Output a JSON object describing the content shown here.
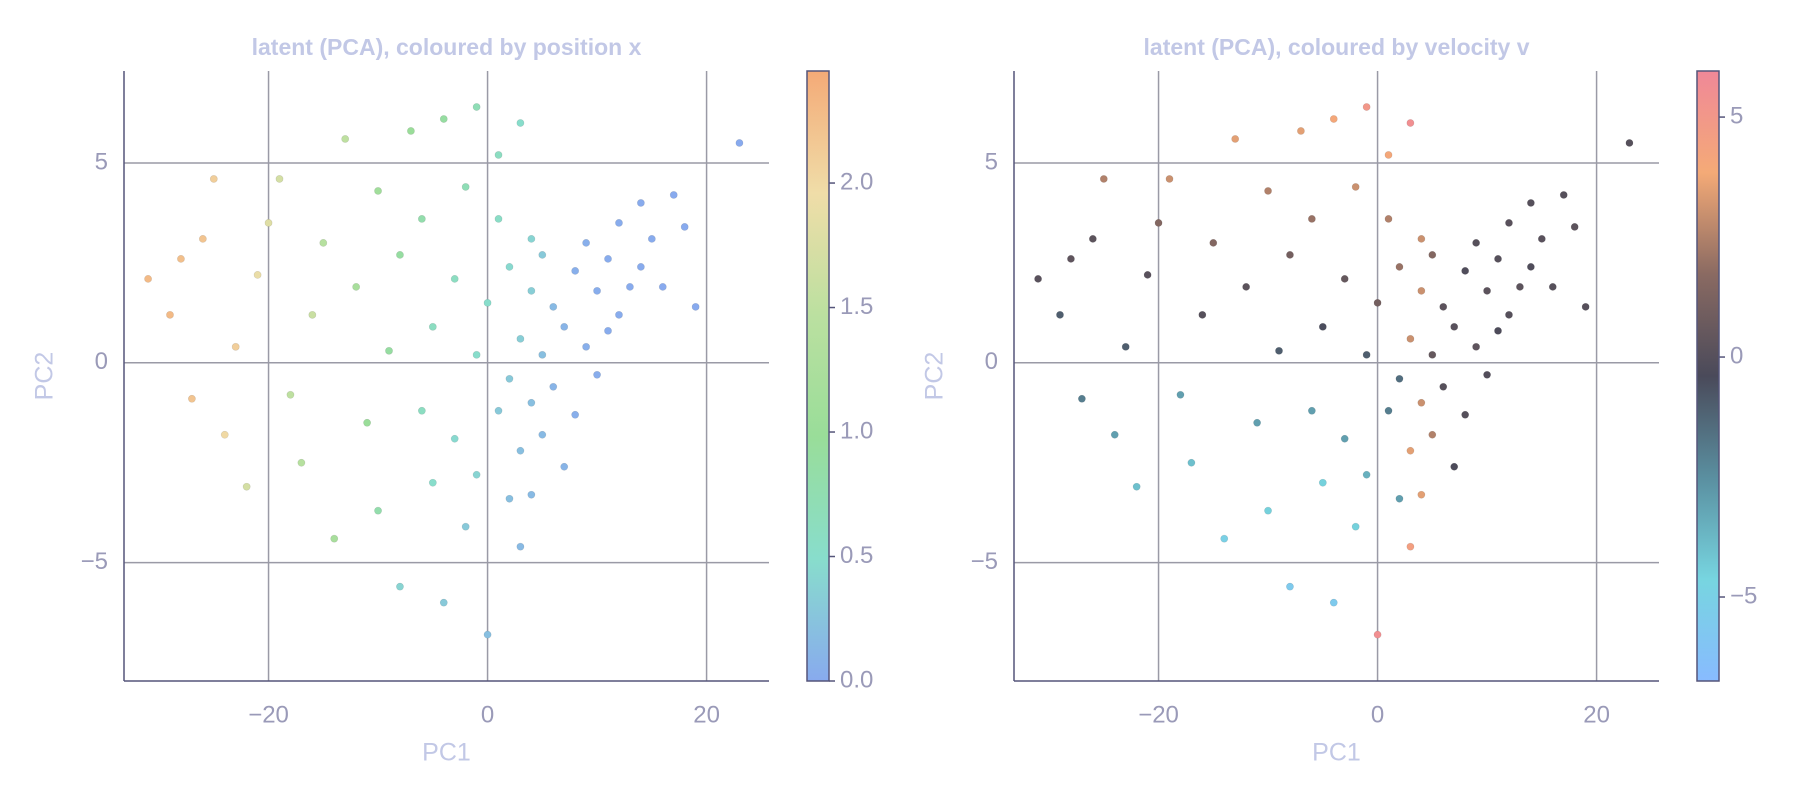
{
  "chart_data": [
    {
      "type": "scatter",
      "title": "latent (PCA), coloured by position x",
      "xlabel": "PC1",
      "ylabel": "PC2",
      "xlim": [
        -33.2,
        25.7
      ],
      "ylim": [
        -7.96,
        7.3
      ],
      "xticks": [
        {
          "value": -20,
          "label": "−20"
        },
        0,
        20
      ],
      "yticks": [
        {
          "value": -5,
          "label": "−5"
        },
        0,
        5
      ],
      "grid": true,
      "clim": [
        0,
        2.45
      ],
      "cticks": [
        {
          "value": 0,
          "label": "0.0"
        },
        0.5,
        {
          "value": 1,
          "label": "1.0"
        },
        1.5,
        {
          "value": 2,
          "label": "2.0"
        }
      ],
      "colorscale": [
        "#88aaee",
        "#88ddcc",
        "#99dd99",
        "#bbe0a0",
        "#f0dda8",
        "#f4aa77"
      ],
      "x": [
        -31,
        -29,
        -28,
        -26,
        -25,
        -27,
        -24,
        -23,
        -22,
        -21,
        -20,
        -19,
        -18,
        -17,
        -16,
        -15,
        -14,
        -13,
        -12,
        -11,
        -10,
        -10,
        -9,
        -8,
        -8,
        -7,
        -6,
        -6,
        -5,
        -5,
        -4,
        -4,
        -3,
        -3,
        -2,
        -2,
        -1,
        -1,
        -1,
        0,
        0,
        1,
        1,
        1,
        2,
        2,
        2,
        3,
        3,
        3,
        3,
        4,
        4,
        4,
        4,
        5,
        5,
        5,
        6,
        6,
        7,
        7,
        8,
        8,
        9,
        9,
        10,
        10,
        11,
        11,
        12,
        12,
        13,
        14,
        14,
        15,
        16,
        17,
        18,
        19,
        23
      ],
      "values": [
        2.1,
        1.2,
        2.6,
        3.1,
        4.6,
        -0.9,
        -1.8,
        0.4,
        -3.1,
        2.2,
        3.5,
        4.6,
        -0.8,
        -2.5,
        1.2,
        3.0,
        -4.4,
        5.6,
        1.9,
        -1.5,
        4.3,
        -3.7,
        0.3,
        -5.6,
        2.7,
        5.8,
        -1.2,
        3.6,
        -3.0,
        0.9,
        6.1,
        -6.0,
        -1.9,
        2.1,
        4.4,
        -4.1,
        0.2,
        -2.8,
        6.4,
        -6.8,
        1.5,
        3.6,
        -1.2,
        5.2,
        -0.4,
        -3.4,
        2.4,
        6.0,
        0.6,
        -2.2,
        -4.6,
        1.8,
        -1.0,
        3.1,
        -3.3,
        0.2,
        -1.8,
        2.7,
        -0.6,
        1.4,
        -2.6,
        0.9,
        2.3,
        -1.3,
        0.4,
        3.0,
        -0.3,
        1.8,
        2.6,
        0.8,
        3.5,
        1.2,
        1.9,
        4.0,
        2.4,
        3.1,
        1.9,
        4.2,
        3.4,
        1.4,
        5.5
      ],
      "color_values": [
        2.3,
        2.3,
        2.25,
        2.2,
        2.1,
        2.2,
        2.0,
        2.1,
        1.7,
        1.9,
        1.8,
        1.7,
        1.5,
        1.4,
        1.6,
        1.4,
        1.2,
        1.5,
        1.2,
        1.0,
        1.1,
        0.8,
        0.9,
        0.4,
        0.9,
        1.0,
        0.6,
        0.8,
        0.5,
        0.6,
        0.9,
        0.3,
        0.45,
        0.6,
        0.7,
        0.3,
        0.5,
        0.4,
        0.7,
        0.2,
        0.5,
        0.55,
        0.3,
        0.6,
        0.3,
        0.2,
        0.45,
        0.5,
        0.35,
        0.2,
        0.15,
        0.35,
        0.2,
        0.4,
        0.15,
        0.2,
        0.15,
        0.3,
        0.1,
        0.15,
        0.1,
        0.1,
        0.05,
        0.05,
        0.05,
        0.05,
        0.03,
        0.03,
        0.02,
        0.02,
        0.02,
        0.02,
        0.01,
        0.01,
        0.01,
        0.01,
        0,
        0,
        0,
        0,
        0
      ]
    },
    {
      "type": "scatter",
      "title": "latent (PCA), coloured by velocity v",
      "xlabel": "PC1",
      "ylabel": "PC2",
      "xlim": [
        -33.2,
        25.7
      ],
      "ylim": [
        -7.96,
        7.3
      ],
      "xticks": [
        {
          "value": -20,
          "label": "−20"
        },
        0,
        20
      ],
      "yticks": [
        {
          "value": -5,
          "label": "−5"
        },
        0,
        5
      ],
      "grid": true,
      "clim": [
        -6.75,
        5.96
      ],
      "cticks": [
        {
          "value": -5,
          "label": "−5"
        },
        0,
        5
      ],
      "colorscale": [
        "#88bbff",
        "#77d5e0",
        "#5a8fa0",
        "#4a4a5a",
        "#8a6a62",
        "#f4aa77",
        "#f08898"
      ],
      "x": [
        -31,
        -29,
        -28,
        -26,
        -25,
        -27,
        -24,
        -23,
        -22,
        -21,
        -20,
        -19,
        -18,
        -17,
        -16,
        -15,
        -14,
        -13,
        -12,
        -11,
        -10,
        -10,
        -9,
        -8,
        -8,
        -7,
        -6,
        -6,
        -5,
        -5,
        -4,
        -4,
        -3,
        -3,
        -2,
        -2,
        -1,
        -1,
        -1,
        0,
        0,
        1,
        1,
        1,
        2,
        2,
        2,
        3,
        3,
        3,
        3,
        4,
        4,
        4,
        4,
        5,
        5,
        5,
        6,
        6,
        7,
        7,
        8,
        8,
        9,
        9,
        10,
        10,
        11,
        11,
        12,
        12,
        13,
        14,
        14,
        15,
        16,
        17,
        18,
        19,
        23
      ],
      "values": [
        2.1,
        1.2,
        2.6,
        3.1,
        4.6,
        -0.9,
        -1.8,
        0.4,
        -3.1,
        2.2,
        3.5,
        4.6,
        -0.8,
        -2.5,
        1.2,
        3.0,
        -4.4,
        5.6,
        1.9,
        -1.5,
        4.3,
        -3.7,
        0.3,
        -5.6,
        2.7,
        5.8,
        -1.2,
        3.6,
        -3.0,
        0.9,
        6.1,
        -6.0,
        -1.9,
        2.1,
        4.4,
        -4.1,
        0.2,
        -2.8,
        6.4,
        -6.8,
        1.5,
        3.6,
        -1.2,
        5.2,
        -0.4,
        -3.4,
        2.4,
        6.0,
        0.6,
        -2.2,
        -4.6,
        1.8,
        -1.0,
        3.1,
        -3.3,
        0.2,
        -1.8,
        2.7,
        -0.6,
        1.4,
        -2.6,
        0.9,
        2.3,
        -1.3,
        0.4,
        3.0,
        -0.3,
        1.8,
        2.6,
        0.8,
        3.5,
        1.2,
        1.9,
        4.0,
        2.4,
        3.1,
        1.9,
        4.2,
        3.4,
        1.4,
        5.5
      ],
      "color_values": [
        0.1,
        -1,
        0.3,
        0.2,
        2.5,
        -2,
        -3,
        -1,
        -4,
        0.1,
        1.5,
        3,
        -3,
        -4,
        0,
        1.5,
        -5,
        3.5,
        0.2,
        -3,
        2.5,
        -4.5,
        -1,
        -5.5,
        1,
        3.5,
        -3,
        2,
        -4.5,
        -0.5,
        4,
        -5.5,
        -3,
        0.5,
        3,
        -4.5,
        -1,
        -3.5,
        5,
        5.5,
        1,
        2.5,
        -2,
        4,
        -1.5,
        -3,
        2,
        5.5,
        3,
        3.5,
        4.5,
        3,
        3,
        3,
        3.5,
        0.5,
        2.5,
        1.5,
        0,
        0.2,
        -0.3,
        0.1,
        -0.2,
        0,
        0.3,
        0,
        -0.1,
        0.2,
        0,
        -0.3,
        0.1,
        0,
        0.2,
        0,
        -0.2,
        0.1,
        0,
        0,
        0.2,
        0,
        0
      ]
    }
  ]
}
